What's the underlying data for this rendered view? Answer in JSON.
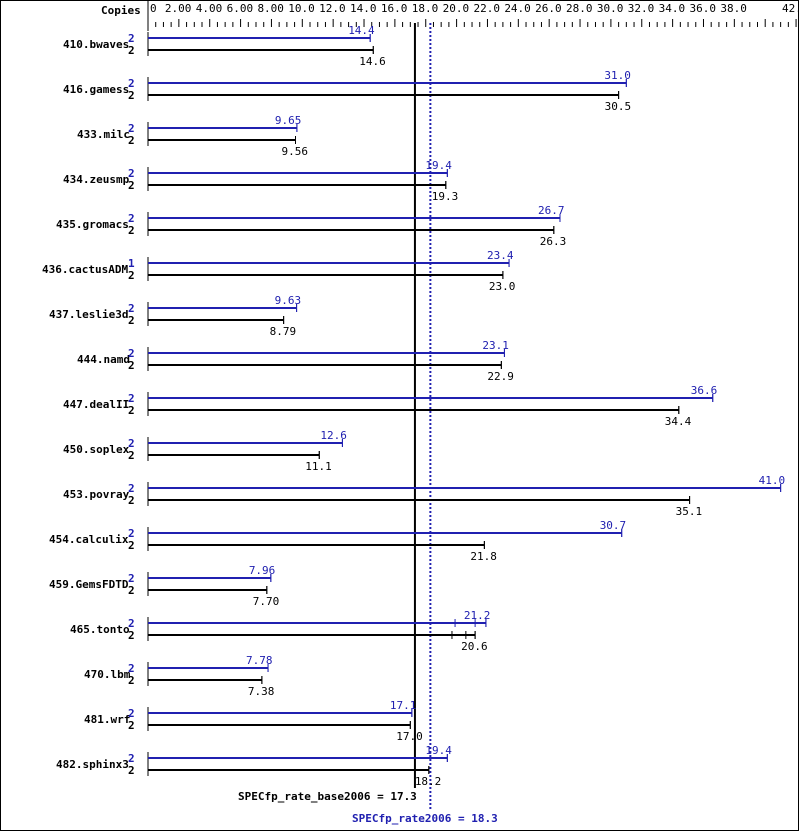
{
  "chart_data": {
    "type": "bar",
    "orientation": "horizontal",
    "copies_header": "Copies",
    "xlim": [
      0,
      42
    ],
    "tick_labels": [
      "0",
      "2.00",
      "4.00",
      "6.00",
      "8.00",
      "10.0",
      "12.0",
      "14.0",
      "16.0",
      "18.0",
      "20.0",
      "22.0",
      "24.0",
      "26.0",
      "28.0",
      "30.0",
      "32.0",
      "34.0",
      "36.0",
      "38.0",
      "42.0"
    ],
    "tick_values": [
      0,
      2,
      4,
      6,
      8,
      10,
      12,
      14,
      16,
      18,
      20,
      22,
      24,
      26,
      28,
      30,
      32,
      34,
      36,
      38,
      42
    ],
    "colors": {
      "peak": "#2020b0",
      "base": "#000000"
    },
    "benchmarks": [
      {
        "name": "410.bwaves",
        "peak_copies": "2",
        "peak": 14.4,
        "peak_label": "14.4",
        "base_copies": "2",
        "base": 14.6,
        "base_label": "14.6"
      },
      {
        "name": "416.gamess",
        "peak_copies": "2",
        "peak": 31.0,
        "peak_label": "31.0",
        "base_copies": "2",
        "base": 30.5,
        "base_label": "30.5"
      },
      {
        "name": "433.milc",
        "peak_copies": "2",
        "peak": 9.65,
        "peak_label": "9.65",
        "base_copies": "2",
        "base": 9.56,
        "base_label": "9.56"
      },
      {
        "name": "434.zeusmp",
        "peak_copies": "2",
        "peak": 19.4,
        "peak_label": "19.4",
        "base_copies": "2",
        "base": 19.3,
        "base_label": "19.3"
      },
      {
        "name": "435.gromacs",
        "peak_copies": "2",
        "peak": 26.7,
        "peak_label": "26.7",
        "base_copies": "2",
        "base": 26.3,
        "base_label": "26.3"
      },
      {
        "name": "436.cactusADM",
        "peak_copies": "1",
        "peak": 23.4,
        "peak_label": "23.4",
        "base_copies": "2",
        "base": 23.0,
        "base_label": "23.0"
      },
      {
        "name": "437.leslie3d",
        "peak_copies": "2",
        "peak": 9.63,
        "peak_label": "9.63",
        "base_copies": "2",
        "base": 8.79,
        "base_label": "8.79"
      },
      {
        "name": "444.namd",
        "peak_copies": "2",
        "peak": 23.1,
        "peak_label": "23.1",
        "base_copies": "2",
        "base": 22.9,
        "base_label": "22.9"
      },
      {
        "name": "447.dealII",
        "peak_copies": "2",
        "peak": 36.6,
        "peak_label": "36.6",
        "base_copies": "2",
        "base": 34.4,
        "base_label": "34.4"
      },
      {
        "name": "450.soplex",
        "peak_copies": "2",
        "peak": 12.6,
        "peak_label": "12.6",
        "base_copies": "2",
        "base": 11.1,
        "base_label": "11.1"
      },
      {
        "name": "453.povray",
        "peak_copies": "2",
        "peak": 41.0,
        "peak_label": "41.0",
        "base_copies": "2",
        "base": 35.1,
        "base_label": "35.1"
      },
      {
        "name": "454.calculix",
        "peak_copies": "2",
        "peak": 30.7,
        "peak_label": "30.7",
        "base_copies": "2",
        "base": 21.8,
        "base_label": "21.8"
      },
      {
        "name": "459.GemsFDTD",
        "peak_copies": "2",
        "peak": 7.96,
        "peak_label": "7.96",
        "base_copies": "2",
        "base": 7.7,
        "base_label": "7.70"
      },
      {
        "name": "465.tonto",
        "peak_copies": "2",
        "peak": 21.2,
        "peak_label": "21.2",
        "peak_runs": [
          19.9,
          21.2,
          21.9
        ],
        "base_copies": "2",
        "base": 20.6,
        "base_label": "20.6",
        "base_runs": [
          19.7,
          20.6,
          21.2
        ]
      },
      {
        "name": "470.lbm",
        "peak_copies": "2",
        "peak": 7.78,
        "peak_label": "7.78",
        "base_copies": "2",
        "base": 7.38,
        "base_label": "7.38"
      },
      {
        "name": "481.wrf",
        "peak_copies": "2",
        "peak": 17.1,
        "peak_label": "17.1",
        "base_copies": "2",
        "base": 17.0,
        "base_label": "17.0"
      },
      {
        "name": "482.sphinx3",
        "peak_copies": "2",
        "peak": 19.4,
        "peak_label": "19.4",
        "base_copies": "2",
        "base": 18.2,
        "base_label": "18.2"
      }
    ],
    "base_summary": {
      "label": "SPECfp_rate_base2006 = 17.3",
      "value": 17.3
    },
    "peak_summary": {
      "label": "SPECfp_rate2006 = 18.3",
      "value": 18.3
    }
  }
}
